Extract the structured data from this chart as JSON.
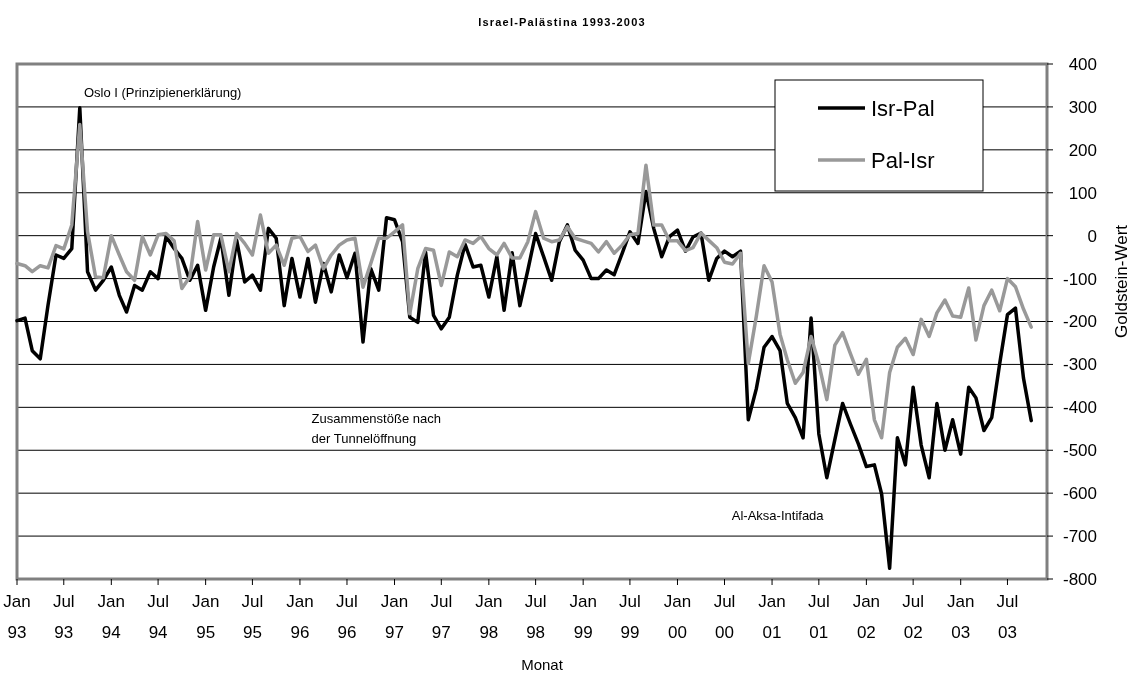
{
  "chart_data": {
    "type": "line",
    "title": "Israel-Palästina 1993-2003",
    "xlabel": "Monat",
    "ylabel": "Goldstein-Wert",
    "x": [
      "1993-01",
      "1993-02",
      "1993-03",
      "1993-04",
      "1993-05",
      "1993-06",
      "1993-07",
      "1993-08",
      "1993-09",
      "1993-10",
      "1993-11",
      "1993-12",
      "1994-01",
      "1994-02",
      "1994-03",
      "1994-04",
      "1994-05",
      "1994-06",
      "1994-07",
      "1994-08",
      "1994-09",
      "1994-10",
      "1994-11",
      "1994-12",
      "1995-01",
      "1995-02",
      "1995-03",
      "1995-04",
      "1995-05",
      "1995-06",
      "1995-07",
      "1995-08",
      "1995-09",
      "1995-10",
      "1995-11",
      "1995-12",
      "1996-01",
      "1996-02",
      "1996-03",
      "1996-04",
      "1996-05",
      "1996-06",
      "1996-07",
      "1996-08",
      "1996-09",
      "1996-10",
      "1996-11",
      "1996-12",
      "1997-01",
      "1997-02",
      "1997-03",
      "1997-04",
      "1997-05",
      "1997-06",
      "1997-07",
      "1997-08",
      "1997-09",
      "1997-10",
      "1997-11",
      "1997-12",
      "1998-01",
      "1998-02",
      "1998-03",
      "1998-04",
      "1998-05",
      "1998-06",
      "1998-07",
      "1998-08",
      "1998-09",
      "1998-10",
      "1998-11",
      "1998-12",
      "1999-01",
      "1999-02",
      "1999-03",
      "1999-04",
      "1999-05",
      "1999-06",
      "1999-07",
      "1999-08",
      "1999-09",
      "1999-10",
      "1999-11",
      "1999-12",
      "2000-01",
      "2000-02",
      "2000-03",
      "2000-04",
      "2000-05",
      "2000-06",
      "2000-07",
      "2000-08",
      "2000-09",
      "2000-10",
      "2000-11",
      "2000-12",
      "2001-01",
      "2001-02",
      "2001-03",
      "2001-04",
      "2001-05",
      "2001-06",
      "2001-07",
      "2001-08",
      "2001-09",
      "2001-10",
      "2001-11",
      "2001-12",
      "2002-01",
      "2002-02",
      "2002-03",
      "2002-04",
      "2002-05",
      "2002-06",
      "2002-07",
      "2002-08",
      "2002-09",
      "2002-10",
      "2002-11",
      "2002-12",
      "2003-01",
      "2003-02",
      "2003-03",
      "2003-04",
      "2003-05",
      "2003-06",
      "2003-07",
      "2003-08",
      "2003-09",
      "2003-10"
    ],
    "series": [
      {
        "name": "Isr-Pal",
        "color": "#000000",
        "values": [
          -198,
          -192,
          -268,
          -287,
          -162,
          -45,
          -53,
          -30,
          298,
          -84,
          -127,
          -104,
          -73,
          -139,
          -178,
          -116,
          -127,
          -84,
          -100,
          -2,
          -30,
          -53,
          -104,
          -69,
          -174,
          -73,
          -6,
          -139,
          -10,
          -108,
          -92,
          -127,
          17,
          -6,
          -163,
          -53,
          -143,
          -53,
          -155,
          -65,
          -131,
          -45,
          -98,
          -41,
          -248,
          -77,
          -127,
          42,
          37,
          -14,
          -190,
          -202,
          -38,
          -186,
          -217,
          -190,
          -92,
          -20,
          -73,
          -69,
          -143,
          -49,
          -174,
          -40,
          -163,
          -80,
          5,
          -49,
          -104,
          -14,
          25,
          -34,
          -57,
          -100,
          -100,
          -80,
          -91,
          -41,
          9,
          -18,
          103,
          17,
          -49,
          -2,
          13,
          -36,
          -3,
          6,
          -104,
          -53,
          -36,
          -49,
          -36,
          -429,
          -357,
          -260,
          -235,
          -268,
          -391,
          -424,
          -471,
          -192,
          -462,
          -564,
          -475,
          -391,
          -440,
          -485,
          -538,
          -534,
          -602,
          -775,
          -471,
          -534,
          -353,
          -488,
          -564,
          -391,
          -500,
          -429,
          -509,
          -353,
          -378,
          -454,
          -424,
          -298,
          -184,
          -169,
          -332,
          -431
        ]
      },
      {
        "name": "Pal-Isr",
        "color": "#999999",
        "values": [
          -65,
          -70,
          -84,
          -70,
          -75,
          -23,
          -31,
          25,
          259,
          9,
          -96,
          -98,
          0,
          -45,
          -84,
          -104,
          -2,
          -45,
          2,
          5,
          -12,
          -123,
          -96,
          33,
          -80,
          2,
          2,
          -84,
          5,
          -18,
          -45,
          48,
          -41,
          -22,
          -69,
          -6,
          -2,
          -37,
          -22,
          -77,
          -45,
          -22,
          -10,
          -6,
          -120,
          -65,
          -6,
          -6,
          9,
          25,
          -182,
          -77,
          -30,
          -34,
          -116,
          -38,
          -49,
          -10,
          -18,
          -2,
          -30,
          -45,
          -18,
          -52,
          -52,
          -14,
          56,
          -6,
          -14,
          -10,
          21,
          -6,
          -12,
          -18,
          -38,
          -14,
          -41,
          -22,
          2,
          5,
          164,
          25,
          25,
          -12,
          -12,
          -35,
          -28,
          6,
          -11,
          -28,
          -62,
          -66,
          -41,
          -298,
          -188,
          -70,
          -108,
          -230,
          -289,
          -344,
          -319,
          -235,
          -298,
          -382,
          -255,
          -226,
          -276,
          -323,
          -288,
          -429,
          -471,
          -319,
          -260,
          -239,
          -277,
          -195,
          -235,
          -180,
          -150,
          -187,
          -190,
          -122,
          -243,
          -163,
          -127,
          -175,
          -100,
          -119,
          -171,
          -213
        ]
      }
    ],
    "xlim": [
      "1993-01",
      "2003-12"
    ],
    "xticks": [
      {
        "value": "1993-01",
        "label": "Jan 93"
      },
      {
        "value": "1993-07",
        "label": "Jul 93"
      },
      {
        "value": "1994-01",
        "label": "Jan 94"
      },
      {
        "value": "1994-07",
        "label": "Jul 94"
      },
      {
        "value": "1995-01",
        "label": "Jan 95"
      },
      {
        "value": "1995-07",
        "label": "Jul 95"
      },
      {
        "value": "1996-01",
        "label": "Jan 96"
      },
      {
        "value": "1996-07",
        "label": "Jul 96"
      },
      {
        "value": "1997-01",
        "label": "Jan 97"
      },
      {
        "value": "1997-07",
        "label": "Jul 97"
      },
      {
        "value": "1998-01",
        "label": "Jan 98"
      },
      {
        "value": "1998-07",
        "label": "Jul 98"
      },
      {
        "value": "1999-01",
        "label": "Jan 99"
      },
      {
        "value": "1999-07",
        "label": "Jul 99"
      },
      {
        "value": "2000-01",
        "label": "Jan 00"
      },
      {
        "value": "2000-07",
        "label": "Jul 00"
      },
      {
        "value": "2001-01",
        "label": "Jan 01"
      },
      {
        "value": "2001-07",
        "label": "Jul 01"
      },
      {
        "value": "2002-01",
        "label": "Jan 02"
      },
      {
        "value": "2002-07",
        "label": "Jul 02"
      },
      {
        "value": "2003-01",
        "label": "Jan 03"
      },
      {
        "value": "2003-07",
        "label": "Jul 03"
      }
    ],
    "ylim": [
      -800,
      400
    ],
    "yticks": [
      -800,
      -700,
      -600,
      -500,
      -400,
      -300,
      -200,
      -100,
      0,
      100,
      200,
      300,
      400
    ],
    "annotations": [
      "Oslo I (Prinzipienerklärung)",
      "Zusammenstöße nach der Tunnelöffnung",
      "Al-Aksa-Intifada"
    ],
    "grid": "y",
    "legend": "top right",
    "marker": "none",
    "line_style": "solid"
  }
}
